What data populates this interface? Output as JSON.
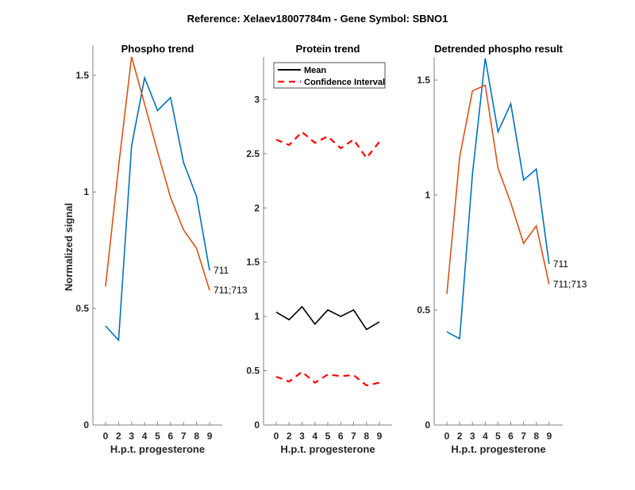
{
  "figure": {
    "title": "Reference:  Xelaev18007784m - Gene Symbol:  SBNO1"
  },
  "chart_data": [
    {
      "type": "line",
      "title": "Phospho trend",
      "xlabel": "H.p.t. progesterone",
      "ylabel": "Normalized signal",
      "categories": [
        "0",
        "2",
        "3",
        "4",
        "5",
        "6",
        "7",
        "8",
        "9"
      ],
      "ylim": [
        0,
        1.63
      ],
      "yticks": [
        "0",
        "0.5",
        "1",
        "1.5"
      ],
      "ytick_values": [
        0,
        0.5,
        1,
        1.5
      ],
      "grid": false,
      "series": [
        {
          "name": "711",
          "color": "#0072BD",
          "values": [
            0.425,
            0.364,
            1.197,
            1.49,
            1.35,
            1.405,
            1.126,
            0.98,
            0.663
          ]
        },
        {
          "name": "711;713",
          "color": "#D95319",
          "values": [
            0.595,
            1.109,
            1.58,
            1.378,
            1.173,
            0.976,
            0.837,
            0.758,
            0.578
          ]
        }
      ]
    },
    {
      "type": "line",
      "title": "Protein trend",
      "xlabel": "H.p.t. progesterone",
      "ylabel": "",
      "categories": [
        "0",
        "2",
        "3",
        "4",
        "5",
        "6",
        "7",
        "8",
        "9"
      ],
      "ylim": [
        0,
        3.39
      ],
      "yticks": [
        "0",
        "0.5",
        "1",
        "1.5",
        "2",
        "2.5",
        "3"
      ],
      "ytick_values": [
        0,
        0.5,
        1,
        1.5,
        2,
        2.5,
        3
      ],
      "grid": false,
      "legend": {
        "placement": "top",
        "entries": [
          "Mean",
          "Confidence Interval"
        ]
      },
      "series": [
        {
          "name": "Mean",
          "color": "#000000",
          "style": "solid",
          "values": [
            1.04,
            0.97,
            1.09,
            0.93,
            1.06,
            1.0,
            1.06,
            0.88,
            0.95
          ]
        },
        {
          "name": "Confidence Interval (upper)",
          "color": "#FF0000",
          "style": "dashed",
          "values": [
            2.63,
            2.58,
            2.7,
            2.6,
            2.66,
            2.55,
            2.63,
            2.46,
            2.61
          ]
        },
        {
          "name": "Confidence Interval (lower)",
          "color": "#FF0000",
          "style": "dashed",
          "values": [
            0.445,
            0.4,
            0.49,
            0.39,
            0.465,
            0.45,
            0.46,
            0.365,
            0.39
          ]
        }
      ]
    },
    {
      "type": "line",
      "title": "Detrended phospho result",
      "xlabel": "H.p.t. progesterone",
      "ylabel": "",
      "categories": [
        "0",
        "2",
        "3",
        "4",
        "5",
        "6",
        "7",
        "8",
        "9"
      ],
      "ylim": [
        0,
        1.6
      ],
      "yticks": [
        "0",
        "0.5",
        "1",
        "1.5"
      ],
      "ytick_values": [
        0,
        0.5,
        1,
        1.5
      ],
      "grid": false,
      "series": [
        {
          "name": "711",
          "color": "#0072BD",
          "values": [
            0.405,
            0.375,
            1.09,
            1.595,
            1.275,
            1.397,
            1.065,
            1.113,
            0.7
          ]
        },
        {
          "name": "711;713",
          "color": "#D95319",
          "values": [
            0.57,
            1.165,
            1.453,
            1.478,
            1.117,
            0.966,
            0.79,
            0.866,
            0.612
          ]
        }
      ]
    }
  ]
}
